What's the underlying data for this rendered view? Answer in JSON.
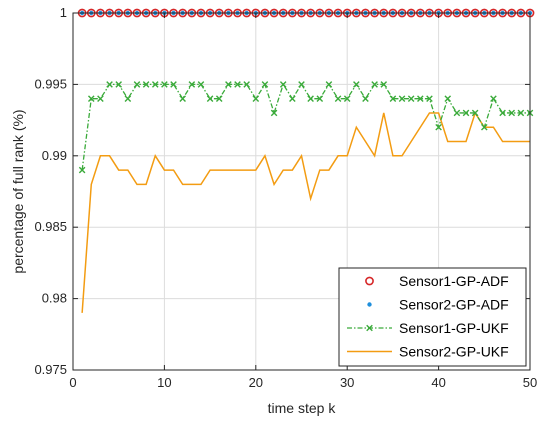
{
  "chart_data": {
    "type": "line",
    "title": "",
    "xlabel": "time step k",
    "ylabel": "percentage of full rank (%)",
    "xlim": [
      0,
      50
    ],
    "ylim": [
      0.975,
      1
    ],
    "xticks": [
      0,
      10,
      20,
      30,
      40,
      50
    ],
    "xtick_labels": [
      "0",
      "10",
      "20",
      "30",
      "40",
      "50"
    ],
    "yticks": [
      0.975,
      0.98,
      0.985,
      0.99,
      0.995,
      1
    ],
    "ytick_labels": [
      "0.975",
      "0.98",
      "0.985",
      "0.99",
      "0.995",
      "1"
    ],
    "grid": true,
    "legend_position": "bottom-right",
    "x": [
      1,
      2,
      3,
      4,
      5,
      6,
      7,
      8,
      9,
      10,
      11,
      12,
      13,
      14,
      15,
      16,
      17,
      18,
      19,
      20,
      21,
      22,
      23,
      24,
      25,
      26,
      27,
      28,
      29,
      30,
      31,
      32,
      33,
      34,
      35,
      36,
      37,
      38,
      39,
      40,
      41,
      42,
      43,
      44,
      45,
      46,
      47,
      48,
      49,
      50
    ],
    "series": [
      {
        "name": "Sensor1-GP-ADF",
        "style": "markers",
        "marker": "circle",
        "color": "#d62728",
        "values": [
          1,
          1,
          1,
          1,
          1,
          1,
          1,
          1,
          1,
          1,
          1,
          1,
          1,
          1,
          1,
          1,
          1,
          1,
          1,
          1,
          1,
          1,
          1,
          1,
          1,
          1,
          1,
          1,
          1,
          1,
          1,
          1,
          1,
          1,
          1,
          1,
          1,
          1,
          1,
          1,
          1,
          1,
          1,
          1,
          1,
          1,
          1,
          1,
          1,
          1
        ]
      },
      {
        "name": "Sensor2-GP-ADF",
        "style": "markers",
        "marker": "dot",
        "color": "#1f8fdc",
        "values": [
          1,
          1,
          1,
          1,
          1,
          1,
          1,
          1,
          1,
          1,
          1,
          1,
          1,
          1,
          1,
          1,
          1,
          1,
          1,
          1,
          1,
          1,
          1,
          1,
          1,
          1,
          1,
          1,
          1,
          1,
          1,
          1,
          1,
          1,
          1,
          1,
          1,
          1,
          1,
          1,
          1,
          1,
          1,
          1,
          1,
          1,
          1,
          1,
          1,
          1
        ]
      },
      {
        "name": "Sensor1-GP-UKF",
        "style": "dashdot-x",
        "marker": "x",
        "color": "#3aaa3a",
        "values": [
          0.989,
          0.994,
          0.994,
          0.995,
          0.995,
          0.994,
          0.995,
          0.995,
          0.995,
          0.995,
          0.995,
          0.994,
          0.995,
          0.995,
          0.994,
          0.994,
          0.995,
          0.995,
          0.995,
          0.994,
          0.995,
          0.993,
          0.995,
          0.994,
          0.995,
          0.994,
          0.994,
          0.995,
          0.994,
          0.994,
          0.995,
          0.994,
          0.995,
          0.995,
          0.994,
          0.994,
          0.994,
          0.994,
          0.994,
          0.992,
          0.994,
          0.993,
          0.993,
          0.993,
          0.992,
          0.994,
          0.993,
          0.993,
          0.993,
          0.993
        ]
      },
      {
        "name": "Sensor2-GP-UKF",
        "style": "line",
        "marker": "none",
        "color": "#f39c12",
        "values": [
          0.979,
          0.988,
          0.99,
          0.99,
          0.989,
          0.989,
          0.988,
          0.988,
          0.99,
          0.989,
          0.989,
          0.988,
          0.988,
          0.988,
          0.989,
          0.989,
          0.989,
          0.989,
          0.989,
          0.989,
          0.99,
          0.988,
          0.989,
          0.989,
          0.99,
          0.987,
          0.989,
          0.989,
          0.99,
          0.99,
          0.992,
          0.991,
          0.99,
          0.993,
          0.99,
          0.99,
          0.991,
          0.992,
          0.993,
          0.993,
          0.991,
          0.991,
          0.991,
          0.993,
          0.992,
          0.992,
          0.991,
          0.991,
          0.991,
          0.991
        ]
      }
    ]
  }
}
